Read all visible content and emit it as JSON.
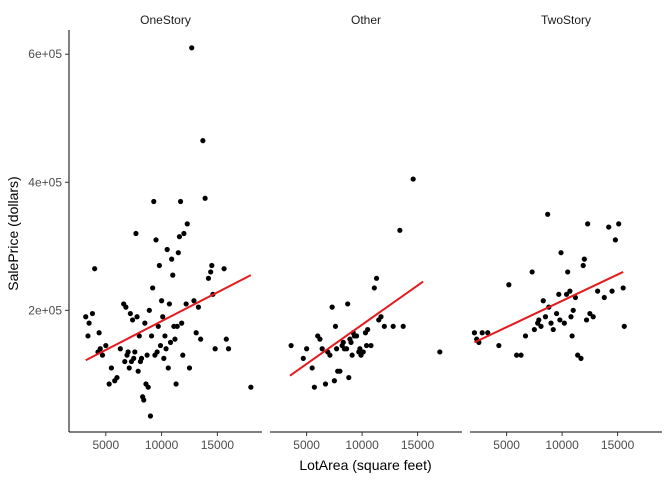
{
  "chart_data": {
    "type": "scatter",
    "xlabel": "LotArea (square feet)",
    "ylabel": "SalePrice (dollars)",
    "x_ticks": [
      5000,
      10000,
      15000
    ],
    "x_tick_labels": [
      "5000",
      "10000",
      "15000"
    ],
    "y_ticks": [
      200000,
      400000,
      600000
    ],
    "y_tick_labels": [
      "2e+05",
      "4e+05",
      "6e+05"
    ],
    "xlim": [
      1700,
      19000
    ],
    "ylim": [
      10000,
      630000
    ],
    "grid": false,
    "point_color": "#000000",
    "fit_color": "#e41a1c",
    "panels": [
      {
        "label": "OneStory",
        "trend": [
          [
            3200,
            122000
          ],
          [
            18000,
            255000
          ]
        ],
        "points": [
          [
            3200,
            190000
          ],
          [
            3400,
            160000
          ],
          [
            3500,
            180000
          ],
          [
            3800,
            195000
          ],
          [
            4000,
            265000
          ],
          [
            4300,
            135000
          ],
          [
            4400,
            165000
          ],
          [
            4500,
            140000
          ],
          [
            4700,
            130000
          ],
          [
            5000,
            145000
          ],
          [
            5300,
            85000
          ],
          [
            5500,
            110000
          ],
          [
            5800,
            90000
          ],
          [
            6000,
            95000
          ],
          [
            6300,
            140000
          ],
          [
            6600,
            210000
          ],
          [
            6700,
            120000
          ],
          [
            6800,
            205000
          ],
          [
            6900,
            130000
          ],
          [
            7000,
            135000
          ],
          [
            7100,
            110000
          ],
          [
            7200,
            195000
          ],
          [
            7300,
            120000
          ],
          [
            7400,
            185000
          ],
          [
            7500,
            125000
          ],
          [
            7600,
            135000
          ],
          [
            7700,
            320000
          ],
          [
            7800,
            190000
          ],
          [
            7900,
            105000
          ],
          [
            8000,
            160000
          ],
          [
            8100,
            120000
          ],
          [
            8200,
            125000
          ],
          [
            8300,
            65000
          ],
          [
            8400,
            60000
          ],
          [
            8500,
            180000
          ],
          [
            8600,
            85000
          ],
          [
            8700,
            130000
          ],
          [
            8800,
            80000
          ],
          [
            8900,
            200000
          ],
          [
            9000,
            35000
          ],
          [
            9100,
            160000
          ],
          [
            9200,
            235000
          ],
          [
            9300,
            370000
          ],
          [
            9400,
            130000
          ],
          [
            9500,
            310000
          ],
          [
            9600,
            135000
          ],
          [
            9700,
            175000
          ],
          [
            9800,
            270000
          ],
          [
            9900,
            145000
          ],
          [
            10000,
            215000
          ],
          [
            10100,
            190000
          ],
          [
            10200,
            125000
          ],
          [
            10300,
            160000
          ],
          [
            10400,
            140000
          ],
          [
            10500,
            295000
          ],
          [
            10600,
            110000
          ],
          [
            10700,
            210000
          ],
          [
            10800,
            150000
          ],
          [
            10900,
            280000
          ],
          [
            11000,
            255000
          ],
          [
            11100,
            175000
          ],
          [
            11200,
            155000
          ],
          [
            11300,
            85000
          ],
          [
            11400,
            175000
          ],
          [
            11500,
            290000
          ],
          [
            11600,
            315000
          ],
          [
            11700,
            370000
          ],
          [
            11800,
            180000
          ],
          [
            11900,
            130000
          ],
          [
            12000,
            320000
          ],
          [
            12200,
            210000
          ],
          [
            12300,
            335000
          ],
          [
            12500,
            110000
          ],
          [
            12700,
            610000
          ],
          [
            12900,
            215000
          ],
          [
            13100,
            165000
          ],
          [
            13300,
            205000
          ],
          [
            13500,
            155000
          ],
          [
            13700,
            465000
          ],
          [
            13900,
            375000
          ],
          [
            14200,
            250000
          ],
          [
            14400,
            260000
          ],
          [
            14500,
            270000
          ],
          [
            14600,
            225000
          ],
          [
            14800,
            140000
          ],
          [
            15600,
            265000
          ],
          [
            15800,
            155000
          ],
          [
            16000,
            140000
          ],
          [
            18000,
            80000
          ]
        ]
      },
      {
        "label": "Other",
        "trend": [
          [
            3500,
            98000
          ],
          [
            15500,
            245000
          ]
        ],
        "points": [
          [
            3600,
            145000
          ],
          [
            4700,
            125000
          ],
          [
            5000,
            140000
          ],
          [
            5500,
            110000
          ],
          [
            5700,
            80000
          ],
          [
            6000,
            160000
          ],
          [
            6200,
            155000
          ],
          [
            6400,
            140000
          ],
          [
            6700,
            85000
          ],
          [
            6900,
            135000
          ],
          [
            7100,
            130000
          ],
          [
            7300,
            205000
          ],
          [
            7500,
            90000
          ],
          [
            7600,
            175000
          ],
          [
            7700,
            140000
          ],
          [
            7800,
            105000
          ],
          [
            8000,
            105000
          ],
          [
            8200,
            145000
          ],
          [
            8300,
            150000
          ],
          [
            8400,
            140000
          ],
          [
            8600,
            140000
          ],
          [
            8700,
            210000
          ],
          [
            8800,
            95000
          ],
          [
            8900,
            155000
          ],
          [
            9000,
            150000
          ],
          [
            9100,
            130000
          ],
          [
            9200,
            165000
          ],
          [
            9300,
            160000
          ],
          [
            9500,
            160000
          ],
          [
            9700,
            135000
          ],
          [
            9800,
            140000
          ],
          [
            9900,
            130000
          ],
          [
            10100,
            135000
          ],
          [
            10300,
            165000
          ],
          [
            10400,
            145000
          ],
          [
            10500,
            170000
          ],
          [
            10800,
            145000
          ],
          [
            11100,
            235000
          ],
          [
            11300,
            250000
          ],
          [
            11500,
            185000
          ],
          [
            11700,
            190000
          ],
          [
            12000,
            175000
          ],
          [
            12800,
            175000
          ],
          [
            13400,
            325000
          ],
          [
            13700,
            175000
          ],
          [
            14600,
            405000
          ],
          [
            17000,
            135000
          ]
        ]
      },
      {
        "label": "TwoStory",
        "trend": [
          [
            2100,
            150000
          ],
          [
            15500,
            260000
          ]
        ],
        "points": [
          [
            2100,
            165000
          ],
          [
            2300,
            155000
          ],
          [
            2500,
            150000
          ],
          [
            2800,
            165000
          ],
          [
            3300,
            165000
          ],
          [
            4300,
            145000
          ],
          [
            5200,
            240000
          ],
          [
            5900,
            130000
          ],
          [
            6300,
            130000
          ],
          [
            6700,
            160000
          ],
          [
            7300,
            260000
          ],
          [
            7500,
            170000
          ],
          [
            7800,
            180000
          ],
          [
            7900,
            185000
          ],
          [
            8100,
            175000
          ],
          [
            8300,
            215000
          ],
          [
            8500,
            190000
          ],
          [
            8700,
            350000
          ],
          [
            8800,
            205000
          ],
          [
            9000,
            180000
          ],
          [
            9200,
            170000
          ],
          [
            9500,
            195000
          ],
          [
            9700,
            225000
          ],
          [
            9800,
            185000
          ],
          [
            9900,
            290000
          ],
          [
            10200,
            180000
          ],
          [
            10400,
            225000
          ],
          [
            10500,
            260000
          ],
          [
            10700,
            230000
          ],
          [
            10800,
            190000
          ],
          [
            10900,
            160000
          ],
          [
            11000,
            200000
          ],
          [
            11200,
            220000
          ],
          [
            11400,
            130000
          ],
          [
            11700,
            125000
          ],
          [
            11900,
            270000
          ],
          [
            12000,
            280000
          ],
          [
            12200,
            185000
          ],
          [
            12300,
            335000
          ],
          [
            12500,
            195000
          ],
          [
            12800,
            190000
          ],
          [
            13200,
            230000
          ],
          [
            13800,
            220000
          ],
          [
            14200,
            330000
          ],
          [
            14500,
            230000
          ],
          [
            14800,
            310000
          ],
          [
            15100,
            335000
          ],
          [
            15500,
            235000
          ],
          [
            15600,
            175000
          ]
        ]
      }
    ]
  }
}
